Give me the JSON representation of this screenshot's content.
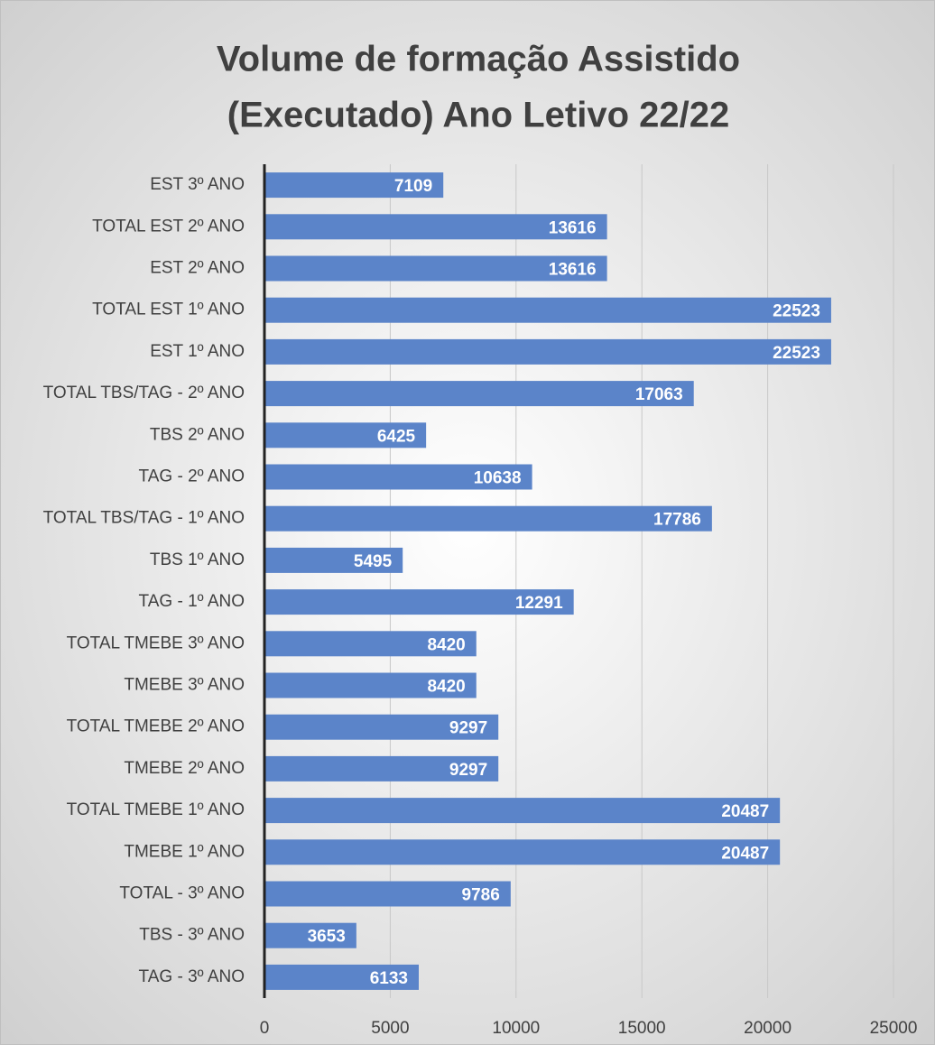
{
  "chart_data": {
    "type": "barh",
    "title": [
      "Volume de formação Assistido",
      "(Executado) Ano Letivo 22/22"
    ],
    "categories": [
      "EST 3º ANO",
      "TOTAL EST 2º ANO",
      "EST 2º ANO",
      "TOTAL EST 1º ANO",
      "EST 1º ANO",
      "TOTAL TBS/TAG - 2º ANO",
      "TBS 2º ANO",
      "TAG - 2º ANO",
      "TOTAL TBS/TAG - 1º ANO",
      "TBS 1º ANO",
      "TAG - 1º ANO",
      "TOTAL TMEBE 3º ANO",
      "TMEBE 3º ANO",
      "TOTAL TMEBE 2º ANO",
      "TMEBE 2º ANO",
      "TOTAL TMEBE 1º ANO",
      "TMEBE 1º ANO",
      "TOTAL - 3º ANO",
      "TBS - 3º ANO",
      "TAG - 3º ANO"
    ],
    "values": [
      7109,
      13616,
      13616,
      22523,
      22523,
      17063,
      6425,
      10638,
      17786,
      5495,
      12291,
      8420,
      8420,
      9297,
      9297,
      20487,
      20487,
      9786,
      3653,
      6133
    ],
    "color": "#5b84c9",
    "xlim": [
      0,
      25000
    ],
    "xticks": [
      0,
      5000,
      10000,
      15000,
      20000,
      25000
    ],
    "grid": true
  }
}
